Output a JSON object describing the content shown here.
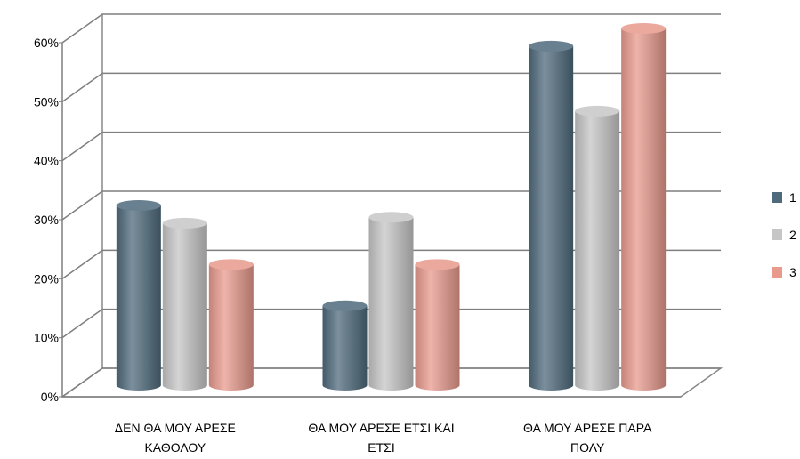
{
  "chart_data": {
    "type": "bar",
    "style": "3d-cylinder",
    "categories": [
      [
        "ΔΕΝ ΘΑ ΜΟΥ ΑΡΕΣΕ",
        "ΚΑΘΟΛΟΥ"
      ],
      [
        "ΘΑ ΜΟΥ ΑΡΕΣΕ ΕΤΣΙ ΚΑΙ",
        "ΕΤΣΙ"
      ],
      [
        "ΘΑ ΜΟΥ ΑΡΕΣΕ ΠΑΡΑ",
        "ΠΟΛΥ"
      ]
    ],
    "series": [
      {
        "name": "1",
        "color": "#4f6a7c",
        "values": [
          30,
          13,
          57
        ]
      },
      {
        "name": "2",
        "color": "#c6c6c6",
        "values": [
          27,
          28,
          46
        ]
      },
      {
        "name": "3",
        "color": "#e89a8d",
        "values": [
          20,
          20,
          60
        ]
      }
    ],
    "ylim": [
      0,
      60
    ],
    "yticks": [
      "0%",
      "10%",
      "20%",
      "30%",
      "40%",
      "50%",
      "60%"
    ],
    "grid": true,
    "legend": "right"
  }
}
